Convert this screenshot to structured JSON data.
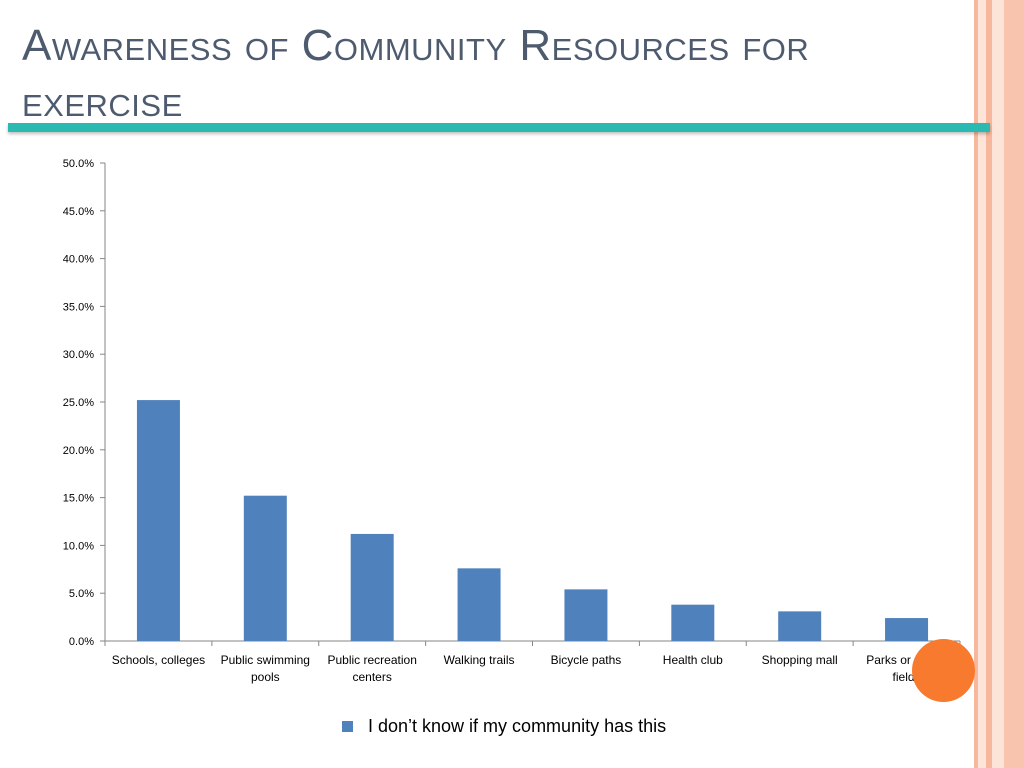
{
  "slide": {
    "title": "Awareness of Community Resources for exercise",
    "accent_colors": {
      "teal_rule": "#2bbab1",
      "title_text": "#4e5b6f",
      "right_stripes": [
        "#fbd3c2",
        "#f7b79d"
      ],
      "orange_circle": "#f77a2f"
    }
  },
  "chart_data": {
    "type": "bar",
    "categories": [
      [
        "Schools, colleges"
      ],
      [
        "Public swimming",
        "pools"
      ],
      [
        "Public recreation",
        "centers"
      ],
      [
        "Walking trails"
      ],
      [
        "Bicycle paths"
      ],
      [
        "Health club"
      ],
      [
        "Shopping mall"
      ],
      [
        "Parks or sports",
        "fields"
      ]
    ],
    "series": [
      {
        "name": "I don’t know if my community has this",
        "color": "#4f81bd",
        "values": [
          25.2,
          15.2,
          11.2,
          7.6,
          5.4,
          3.8,
          3.1,
          2.4
        ]
      }
    ],
    "ylim": [
      0,
      50
    ],
    "yticks": [
      0,
      5,
      10,
      15,
      20,
      25,
      30,
      35,
      40,
      45,
      50
    ],
    "ytick_labels": [
      "0.0%",
      "5.0%",
      "10.0%",
      "15.0%",
      "20.0%",
      "25.0%",
      "30.0%",
      "35.0%",
      "40.0%",
      "45.0%",
      "50.0%"
    ],
    "grid": false,
    "legend_position": "bottom"
  }
}
